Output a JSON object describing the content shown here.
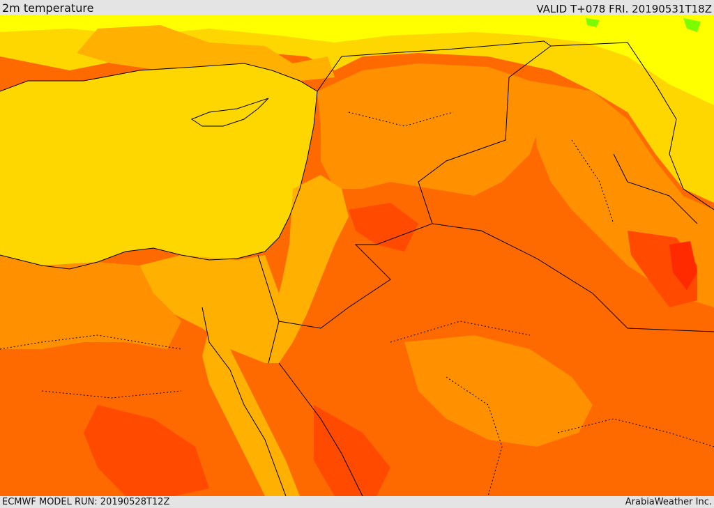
{
  "header": {
    "title": "2m temperature",
    "valid": "VALID T+078 FRI. 20190531T18Z"
  },
  "footer": {
    "model_run": "ECMWF MODEL RUN: 20190528T12Z",
    "credit": "ArabiaWeather Inc."
  },
  "palette": {
    "sea_yellow": "#ffd700",
    "light_yellow": "#ffff00",
    "pale_orange": "#ffb000",
    "orange": "#ff9000",
    "dark_orange": "#ff6a00",
    "red_orange": "#ff4a00",
    "red": "#ff2a00",
    "green": "#7cfc00",
    "border": "#000000"
  }
}
